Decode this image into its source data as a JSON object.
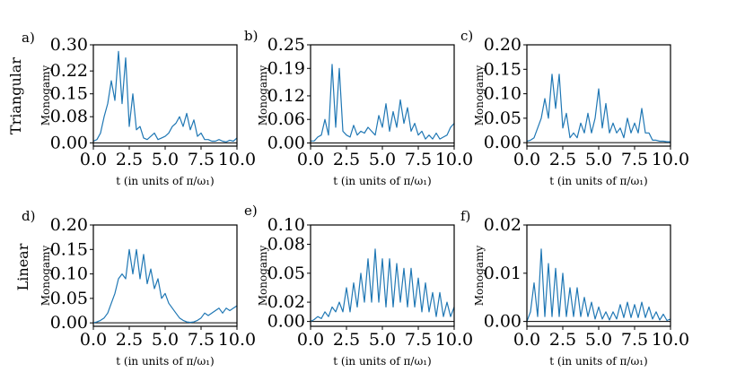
{
  "figure": {
    "row_labels": [
      "Triangular",
      "Linear"
    ],
    "line_color": "#1f77b4"
  },
  "chart_data": [
    {
      "type": "line",
      "panel_label": "a)",
      "xlabel": "t (in units of π/ω₁)",
      "ylabel": "Monogamy",
      "xlim": [
        0,
        10
      ],
      "ylim": [
        -0.01,
        0.3
      ],
      "xticks": [
        0.0,
        2.5,
        5.0,
        7.5,
        10.0
      ],
      "xtick_labels": [
        "0.0",
        "2.5",
        "5.0",
        "7.5",
        "10.0"
      ],
      "yticks": [
        0.0,
        0.08,
        0.15,
        0.22,
        0.3
      ],
      "ytick_labels": [
        "0.00",
        "0.08",
        "0.15",
        "0.22",
        "0.30"
      ],
      "x": [
        0,
        0.25,
        0.5,
        0.75,
        1,
        1.25,
        1.5,
        1.75,
        2,
        2.25,
        2.5,
        2.75,
        3,
        3.25,
        3.5,
        3.75,
        4,
        4.25,
        4.5,
        4.75,
        5,
        5.25,
        5.5,
        5.75,
        6,
        6.25,
        6.5,
        6.75,
        7,
        7.25,
        7.5,
        7.75,
        8,
        8.25,
        8.5,
        8.75,
        9,
        9.25,
        9.5,
        9.75,
        10
      ],
      "y": [
        0.005,
        0.01,
        0.03,
        0.08,
        0.12,
        0.19,
        0.13,
        0.28,
        0.12,
        0.26,
        0.05,
        0.15,
        0.04,
        0.05,
        0.015,
        0.01,
        0.02,
        0.03,
        0.01,
        0.015,
        0.02,
        0.03,
        0.05,
        0.06,
        0.08,
        0.05,
        0.09,
        0.04,
        0.07,
        0.02,
        0.03,
        0.01,
        0.01,
        0.005,
        0.005,
        0.01,
        0.005,
        0.003,
        0.008,
        0.005,
        0.015
      ]
    },
    {
      "type": "line",
      "panel_label": "b)",
      "xlabel": "t (in units of π/ω₁)",
      "ylabel": "Monogamy",
      "xlim": [
        0,
        10
      ],
      "ylim": [
        -0.008,
        0.25
      ],
      "xticks": [
        0.0,
        2.5,
        5.0,
        7.5,
        10.0
      ],
      "xtick_labels": [
        "0.0",
        "2.5",
        "5.0",
        "7.5",
        "10.0"
      ],
      "yticks": [
        0.0,
        0.06,
        0.12,
        0.19,
        0.25
      ],
      "ytick_labels": [
        "0.00",
        "0.06",
        "0.12",
        "0.19",
        "0.25"
      ],
      "x": [
        0,
        0.25,
        0.5,
        0.75,
        1,
        1.25,
        1.5,
        1.75,
        2,
        2.25,
        2.5,
        2.75,
        3,
        3.25,
        3.5,
        3.75,
        4,
        4.25,
        4.5,
        4.75,
        5,
        5.25,
        5.5,
        5.75,
        6,
        6.25,
        6.5,
        6.75,
        7,
        7.25,
        7.5,
        7.75,
        8,
        8.25,
        8.5,
        8.75,
        9,
        9.25,
        9.5,
        9.75,
        10
      ],
      "y": [
        0.005,
        0.005,
        0.015,
        0.02,
        0.06,
        0.02,
        0.2,
        0.04,
        0.19,
        0.03,
        0.02,
        0.015,
        0.045,
        0.02,
        0.03,
        0.025,
        0.04,
        0.03,
        0.02,
        0.07,
        0.04,
        0.1,
        0.03,
        0.08,
        0.04,
        0.11,
        0.05,
        0.09,
        0.03,
        0.05,
        0.02,
        0.03,
        0.01,
        0.02,
        0.01,
        0.025,
        0.01,
        0.015,
        0.02,
        0.04,
        0.05
      ]
    },
    {
      "type": "line",
      "panel_label": "c)",
      "xlabel": "t (in units of π/ω₁)",
      "ylabel": "Monogamy",
      "xlim": [
        0,
        10
      ],
      "ylim": [
        -0.007,
        0.2
      ],
      "xticks": [
        0.0,
        2.5,
        5.0,
        7.5,
        10.0
      ],
      "xtick_labels": [
        "0.0",
        "2.5",
        "5.0",
        "7.5",
        "10.0"
      ],
      "yticks": [
        0.0,
        0.05,
        0.1,
        0.15,
        0.2
      ],
      "ytick_labels": [
        "0.00",
        "0.05",
        "0.10",
        "0.15",
        "0.20"
      ],
      "x": [
        0,
        0.25,
        0.5,
        0.75,
        1,
        1.25,
        1.5,
        1.75,
        2,
        2.25,
        2.5,
        2.75,
        3,
        3.25,
        3.5,
        3.75,
        4,
        4.25,
        4.5,
        4.75,
        5,
        5.25,
        5.5,
        5.75,
        6,
        6.25,
        6.5,
        6.75,
        7,
        7.25,
        7.5,
        7.75,
        8,
        8.25,
        8.5,
        8.75,
        9,
        9.25,
        9.5,
        9.75,
        10
      ],
      "y": [
        0.003,
        0.005,
        0.01,
        0.03,
        0.05,
        0.09,
        0.05,
        0.14,
        0.07,
        0.14,
        0.03,
        0.06,
        0.01,
        0.02,
        0.01,
        0.04,
        0.02,
        0.06,
        0.02,
        0.05,
        0.11,
        0.03,
        0.08,
        0.02,
        0.04,
        0.02,
        0.03,
        0.01,
        0.05,
        0.02,
        0.04,
        0.02,
        0.07,
        0.02,
        0.02,
        0.005,
        0.005,
        0.003,
        0.003,
        0.002,
        0.002
      ]
    },
    {
      "type": "line",
      "panel_label": "d)",
      "xlabel": "t (in units of π/ω₁)",
      "ylabel": "Monogamy",
      "xlim": [
        0,
        10
      ],
      "ylim": [
        -0.007,
        0.2
      ],
      "xticks": [
        0.0,
        2.5,
        5.0,
        7.5,
        10.0
      ],
      "xtick_labels": [
        "0.0",
        "2.5",
        "5.0",
        "7.5",
        "10.0"
      ],
      "yticks": [
        0.0,
        0.05,
        0.1,
        0.15,
        0.2
      ],
      "ytick_labels": [
        "0.00",
        "0.05",
        "0.10",
        "0.15",
        "0.20"
      ],
      "x": [
        0,
        0.25,
        0.5,
        0.75,
        1,
        1.25,
        1.5,
        1.75,
        2,
        2.25,
        2.5,
        2.75,
        3,
        3.25,
        3.5,
        3.75,
        4,
        4.25,
        4.5,
        4.75,
        5,
        5.25,
        5.5,
        5.75,
        6,
        6.25,
        6.5,
        6.75,
        7,
        7.25,
        7.5,
        7.75,
        8,
        8.25,
        8.5,
        8.75,
        9,
        9.25,
        9.5,
        9.75,
        10
      ],
      "y": [
        0,
        0.002,
        0.005,
        0.01,
        0.02,
        0.04,
        0.06,
        0.09,
        0.1,
        0.09,
        0.15,
        0.1,
        0.15,
        0.09,
        0.14,
        0.08,
        0.11,
        0.07,
        0.09,
        0.05,
        0.06,
        0.04,
        0.03,
        0.02,
        0.01,
        0.005,
        0.002,
        0.001,
        0.002,
        0.005,
        0.01,
        0.02,
        0.015,
        0.02,
        0.025,
        0.03,
        0.02,
        0.03,
        0.025,
        0.03,
        0.035
      ]
    },
    {
      "type": "line",
      "panel_label": "e)",
      "xlabel": "t (in units of π/ω₁)",
      "ylabel": "Monogamy",
      "xlim": [
        0,
        10
      ],
      "ylim": [
        -0.005,
        0.1
      ],
      "xticks": [
        0.0,
        2.5,
        5.0,
        7.5,
        10.0
      ],
      "xtick_labels": [
        "0.0",
        "2.5",
        "5.0",
        "7.5",
        "10.0"
      ],
      "yticks": [
        0.0,
        0.02,
        0.05,
        0.08,
        0.1
      ],
      "ytick_labels": [
        "0.00",
        "0.02",
        "0.05",
        "0.08",
        "0.10"
      ],
      "x": [
        0,
        0.25,
        0.5,
        0.75,
        1,
        1.25,
        1.5,
        1.75,
        2,
        2.25,
        2.5,
        2.75,
        3,
        3.25,
        3.5,
        3.75,
        4,
        4.25,
        4.5,
        4.75,
        5,
        5.25,
        5.5,
        5.75,
        6,
        6.25,
        6.5,
        6.75,
        7,
        7.25,
        7.5,
        7.75,
        8,
        8.25,
        8.5,
        8.75,
        9,
        9.25,
        9.5,
        9.75,
        10
      ],
      "y": [
        0,
        0.002,
        0.005,
        0.003,
        0.01,
        0.005,
        0.015,
        0.01,
        0.02,
        0.01,
        0.035,
        0.01,
        0.04,
        0.015,
        0.05,
        0.02,
        0.065,
        0.02,
        0.075,
        0.02,
        0.065,
        0.015,
        0.065,
        0.015,
        0.06,
        0.02,
        0.055,
        0.015,
        0.055,
        0.015,
        0.045,
        0.01,
        0.04,
        0.01,
        0.03,
        0.005,
        0.03,
        0.005,
        0.02,
        0.005,
        0.015
      ]
    },
    {
      "type": "line",
      "panel_label": "f)",
      "xlabel": "t (in units of π/ω₁)",
      "ylabel": "Monogamy",
      "xlim": [
        0,
        10
      ],
      "ylim": [
        -0.001,
        0.02
      ],
      "xticks": [
        0.0,
        2.5,
        5.0,
        7.5,
        10.0
      ],
      "xtick_labels": [
        "0.0",
        "2.5",
        "5.0",
        "7.5",
        "10.0"
      ],
      "yticks": [
        0.0,
        0.01,
        0.02
      ],
      "ytick_labels": [
        "0.00",
        "0.01",
        "0.02"
      ],
      "x": [
        0,
        0.25,
        0.5,
        0.75,
        1,
        1.25,
        1.5,
        1.75,
        2,
        2.25,
        2.5,
        2.75,
        3,
        3.25,
        3.5,
        3.75,
        4,
        4.25,
        4.5,
        4.75,
        5,
        5.25,
        5.5,
        5.75,
        6,
        6.25,
        6.5,
        6.75,
        7,
        7.25,
        7.5,
        7.75,
        8,
        8.25,
        8.5,
        8.75,
        9,
        9.25,
        9.5,
        9.75,
        10
      ],
      "y": [
        0,
        0.002,
        0.008,
        0.001,
        0.015,
        0.001,
        0.012,
        0.001,
        0.011,
        0.001,
        0.01,
        0.001,
        0.007,
        0.001,
        0.007,
        0.001,
        0.005,
        0.001,
        0.004,
        0.0005,
        0.003,
        0.0005,
        0.002,
        0.0003,
        0.002,
        0.0005,
        0.0035,
        0.0008,
        0.004,
        0.0008,
        0.0035,
        0.0008,
        0.004,
        0.0008,
        0.003,
        0.0005,
        0.002,
        0.0003,
        0.0015,
        0.0002,
        0.0005
      ]
    }
  ]
}
